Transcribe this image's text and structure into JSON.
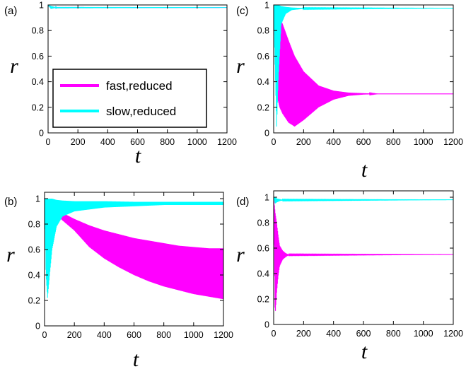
{
  "colors": {
    "fast": "#ff00ff",
    "slow": "#00ffff"
  },
  "legend": [
    "fast,reduced",
    "slow,reduced"
  ],
  "chart_data": [
    {
      "panel": "(a)",
      "type": "line",
      "xlabel": "t",
      "ylabel": "r",
      "xlim": [
        0,
        1200
      ],
      "ylim": [
        0,
        1
      ],
      "xticks": [
        0,
        200,
        400,
        600,
        800,
        1000,
        1200
      ],
      "yticks": [
        0,
        0.2,
        0.4,
        0.6,
        0.8,
        1
      ],
      "ytick_labels": [
        "0",
        "0.2",
        "0.4",
        "0.6",
        "0.8",
        "1"
      ],
      "legend_placement": "lower-left",
      "series": [
        {
          "name": "fast,reduced",
          "color": "#ff00ff",
          "envelope": {
            "x": [
              0,
              20,
              40,
              60,
              1200
            ],
            "upper": [
              1.0,
              0.99,
              0.985,
              0.98,
              0.98
            ],
            "lower": [
              1.0,
              0.97,
              0.975,
              0.978,
              0.98
            ]
          }
        },
        {
          "name": "slow,reduced",
          "color": "#00ffff",
          "envelope": {
            "x": [
              0,
              20,
              40,
              60,
              1200
            ],
            "upper": [
              1.0,
              0.99,
              0.985,
              0.98,
              0.98
            ],
            "lower": [
              1.0,
              0.97,
              0.975,
              0.978,
              0.98
            ]
          }
        }
      ]
    },
    {
      "panel": "(c)",
      "type": "line",
      "xlabel": "t",
      "ylabel": "r",
      "xlim": [
        0,
        1200
      ],
      "ylim": [
        0,
        1
      ],
      "xticks": [
        0,
        200,
        400,
        600,
        800,
        1000,
        1200
      ],
      "yticks": [
        0,
        0.2,
        0.4,
        0.6,
        0.8,
        1
      ],
      "ytick_labels": [
        "0",
        "0.2",
        "0.4",
        "0.6",
        "0.8",
        "1"
      ],
      "series": [
        {
          "name": "fast,reduced",
          "color": "#ff00ff",
          "envelope": {
            "x": [
              0,
              20,
              40,
              60,
              100,
              140,
              200,
              300,
              400,
              500,
              600,
              700,
              800,
              1200
            ],
            "upper": [
              1.0,
              0.95,
              0.9,
              0.85,
              0.72,
              0.6,
              0.48,
              0.37,
              0.33,
              0.315,
              0.31,
              0.305,
              0.305,
              0.305
            ],
            "lower": [
              1.0,
              0.3,
              0.2,
              0.15,
              0.08,
              0.05,
              0.1,
              0.2,
              0.26,
              0.29,
              0.3,
              0.305,
              0.305,
              0.305
            ]
          }
        },
        {
          "name": "slow,reduced",
          "color": "#00ffff",
          "envelope": {
            "x": [
              0,
              10,
              20,
              30,
              50,
              80,
              120,
              200,
              1200
            ],
            "upper": [
              1.0,
              1.0,
              1.0,
              1.0,
              0.99,
              0.985,
              0.98,
              0.975,
              0.975
            ],
            "lower": [
              1.0,
              0.5,
              0.05,
              0.4,
              0.85,
              0.93,
              0.96,
              0.97,
              0.975
            ]
          }
        }
      ]
    },
    {
      "panel": "(b)",
      "type": "line",
      "xlabel": "t",
      "ylabel": "r",
      "xlim": [
        0,
        1200
      ],
      "ylim": [
        0,
        1.05
      ],
      "xticks": [
        0,
        200,
        400,
        600,
        800,
        1000,
        1200
      ],
      "yticks": [
        0,
        0.2,
        0.4,
        0.6,
        0.8,
        1
      ],
      "ytick_labels": [
        "0",
        "0.2",
        "0.4",
        "0.6",
        "0.8",
        "1"
      ],
      "series": [
        {
          "name": "fast,reduced",
          "color": "#ff00ff",
          "envelope": {
            "x": [
              0,
              50,
              100,
              200,
              300,
              400,
              500,
              600,
              700,
              800,
              900,
              1000,
              1100,
              1200
            ],
            "upper": [
              1.0,
              0.95,
              0.9,
              0.84,
              0.79,
              0.75,
              0.72,
              0.69,
              0.67,
              0.65,
              0.63,
              0.62,
              0.61,
              0.61
            ],
            "lower": [
              1.0,
              0.8,
              0.85,
              0.75,
              0.62,
              0.53,
              0.46,
              0.4,
              0.35,
              0.31,
              0.28,
              0.25,
              0.23,
              0.21
            ]
          }
        },
        {
          "name": "slow,reduced",
          "color": "#00ffff",
          "envelope": {
            "x": [
              0,
              10,
              20,
              30,
              50,
              80,
              120,
              200,
              400,
              600,
              800,
              1200
            ],
            "upper": [
              1.0,
              1.0,
              1.0,
              1.0,
              1.0,
              0.99,
              0.985,
              0.98,
              0.98,
              0.975,
              0.975,
              0.975
            ],
            "lower": [
              1.0,
              0.4,
              0.22,
              0.35,
              0.6,
              0.78,
              0.86,
              0.9,
              0.93,
              0.94,
              0.95,
              0.95
            ]
          }
        }
      ]
    },
    {
      "panel": "(d)",
      "type": "line",
      "xlabel": "t",
      "ylabel": "r",
      "xlim": [
        0,
        1200
      ],
      "ylim": [
        0,
        1.05
      ],
      "xticks": [
        0,
        200,
        400,
        600,
        800,
        1000,
        1200
      ],
      "yticks": [
        0,
        0.2,
        0.4,
        0.6,
        0.8,
        1
      ],
      "ytick_labels": [
        "0",
        "0.2",
        "0.4",
        "0.6",
        "0.8",
        "1"
      ],
      "series": [
        {
          "name": "fast,reduced",
          "color": "#ff00ff",
          "envelope": {
            "x": [
              0,
              10,
              20,
              30,
              40,
              60,
              80,
              100,
              1200
            ],
            "upper": [
              1.0,
              0.88,
              0.8,
              0.7,
              0.62,
              0.58,
              0.56,
              0.55,
              0.55
            ],
            "lower": [
              1.0,
              0.07,
              0.25,
              0.38,
              0.46,
              0.51,
              0.53,
              0.545,
              0.55
            ]
          }
        },
        {
          "name": "slow,reduced",
          "color": "#00ffff",
          "envelope": {
            "x": [
              0,
              10,
              20,
              40,
              60,
              1200
            ],
            "upper": [
              1.0,
              1.0,
              0.99,
              0.985,
              0.98,
              0.98
            ],
            "lower": [
              1.0,
              0.95,
              0.96,
              0.97,
              0.975,
              0.98
            ]
          }
        }
      ]
    }
  ]
}
